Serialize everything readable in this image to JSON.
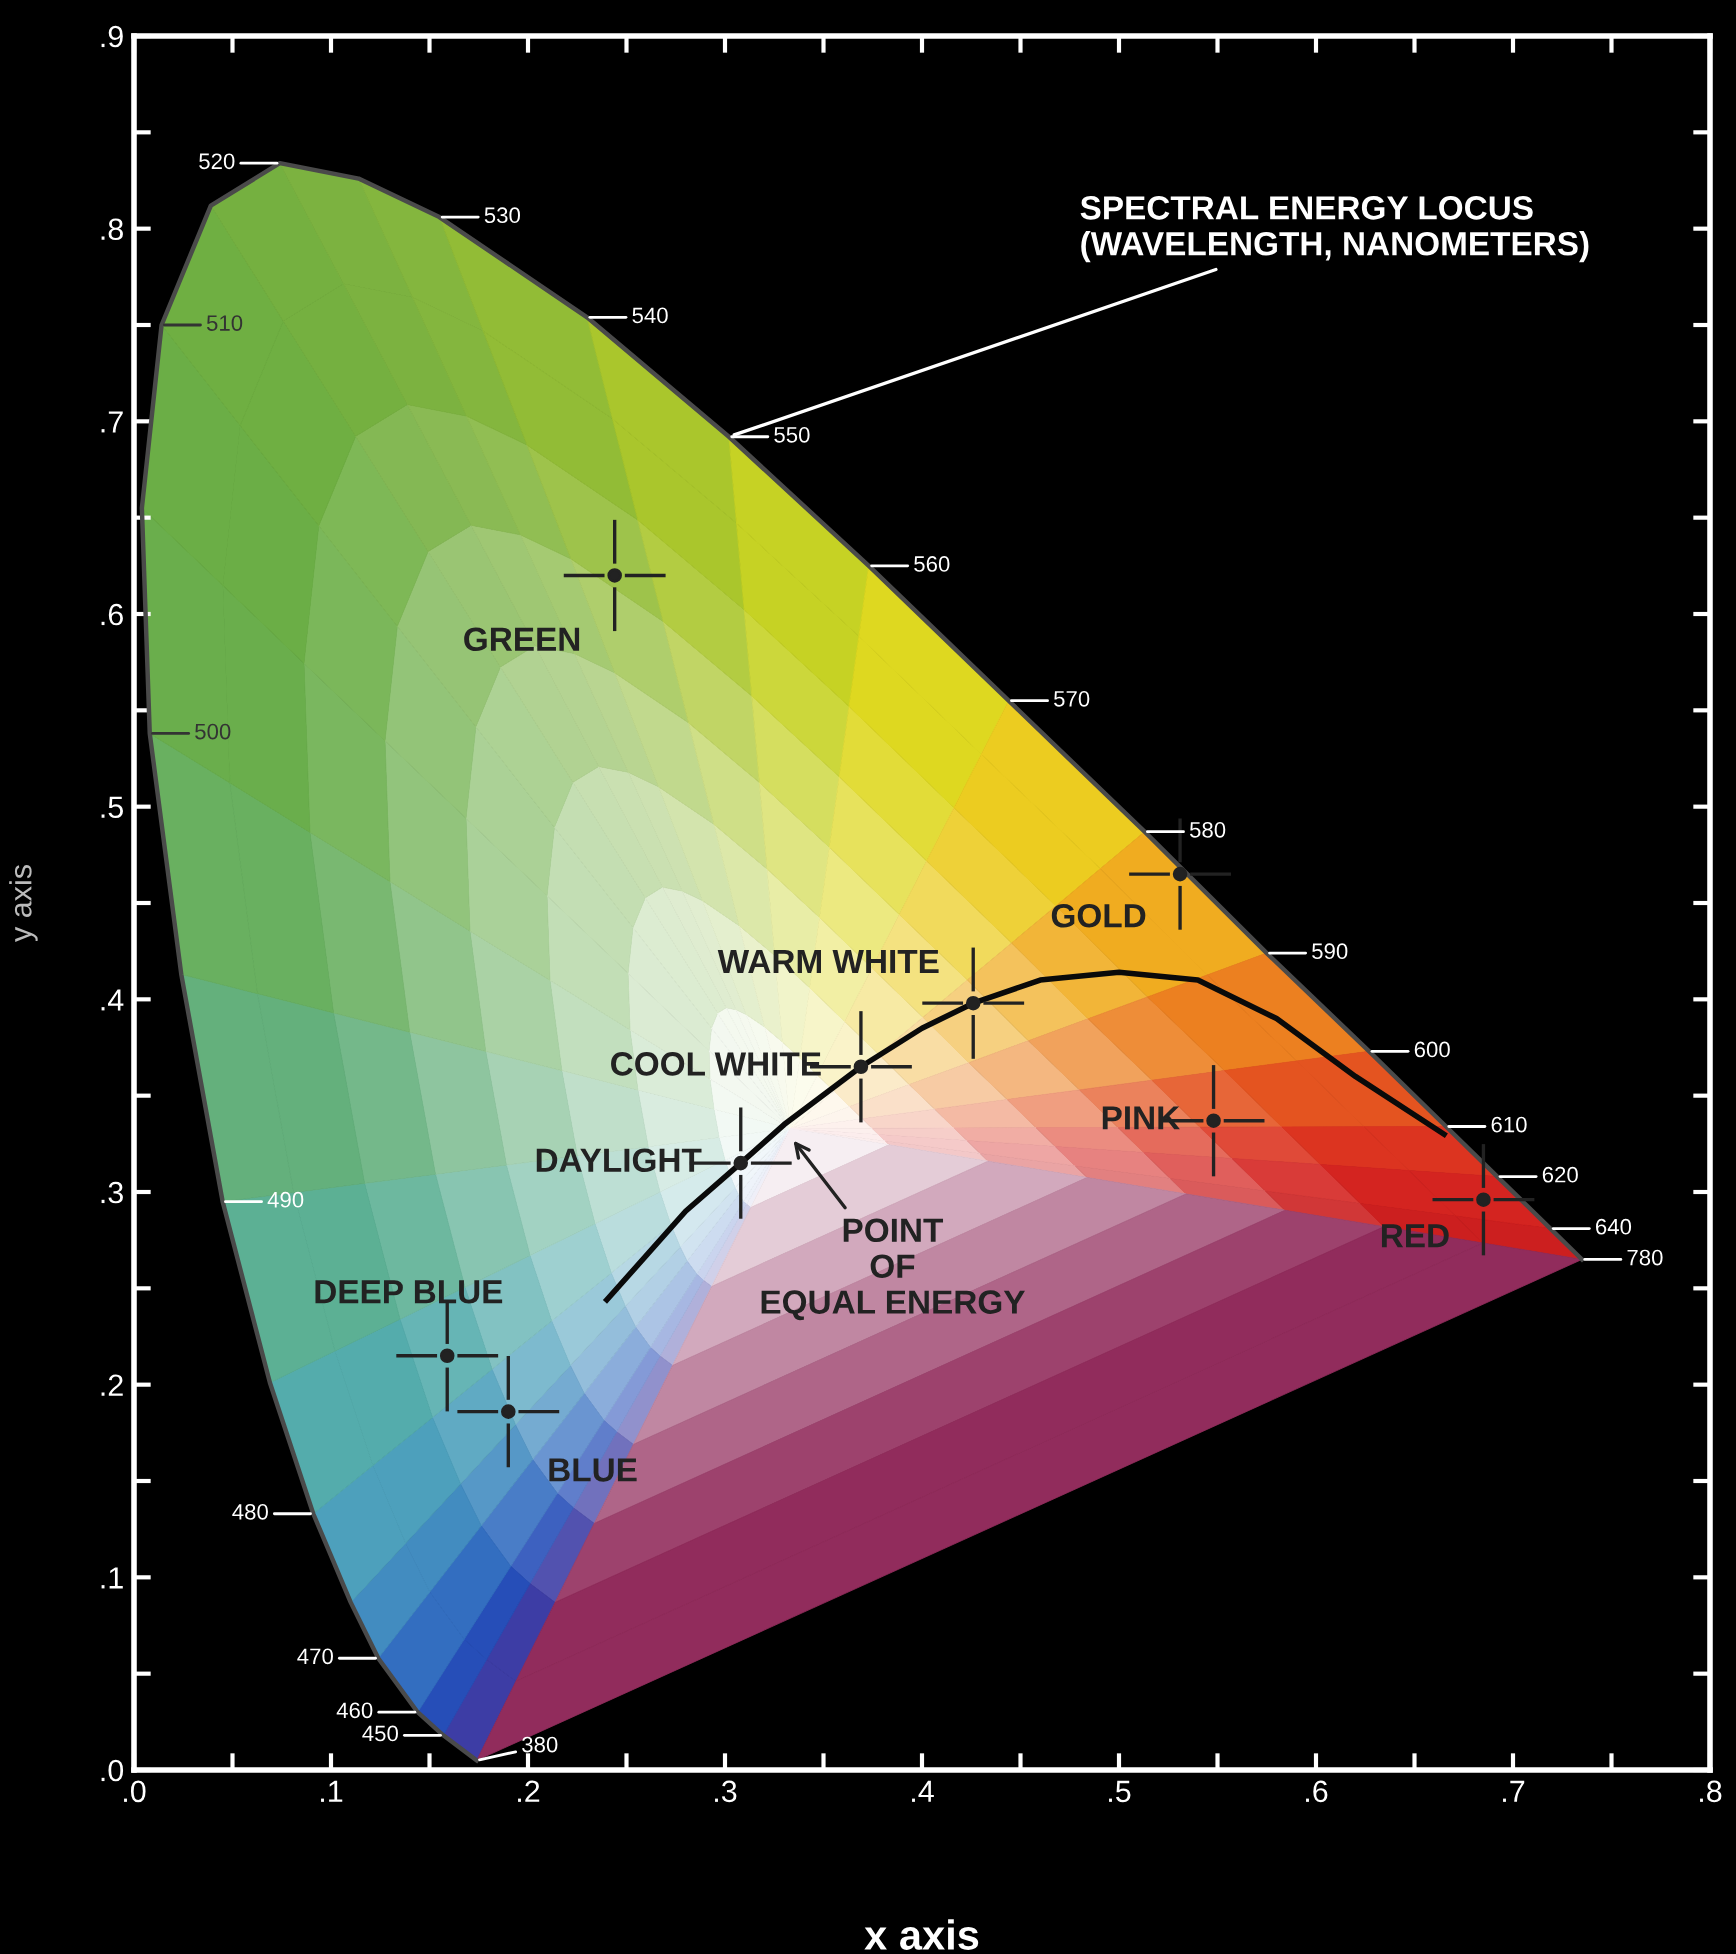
{
  "chart_data": {
    "type": "scatter",
    "xlabel": "x axis",
    "ylabel": "y axis",
    "xlim": [
      0,
      0.8
    ],
    "ylim": [
      0,
      0.9
    ],
    "xticks": [
      {
        "value": 0,
        "label": ".0"
      },
      {
        "value": 0.05,
        "label": null
      },
      {
        "value": 0.1,
        "label": ".1"
      },
      {
        "value": 0.15,
        "label": null
      },
      {
        "value": 0.2,
        "label": ".2"
      },
      {
        "value": 0.25,
        "label": null
      },
      {
        "value": 0.3,
        "label": ".3"
      },
      {
        "value": 0.35,
        "label": null
      },
      {
        "value": 0.4,
        "label": ".4"
      },
      {
        "value": 0.45,
        "label": null
      },
      {
        "value": 0.5,
        "label": ".5"
      },
      {
        "value": 0.55,
        "label": null
      },
      {
        "value": 0.6,
        "label": ".6"
      },
      {
        "value": 0.65,
        "label": null
      },
      {
        "value": 0.7,
        "label": ".7"
      },
      {
        "value": 0.75,
        "label": null
      },
      {
        "value": 0.8,
        "label": ".8"
      }
    ],
    "yticks": [
      {
        "value": 0,
        "label": ".0"
      },
      {
        "value": 0.05,
        "label": null
      },
      {
        "value": 0.1,
        "label": ".1"
      },
      {
        "value": 0.15,
        "label": null
      },
      {
        "value": 0.2,
        "label": ".2"
      },
      {
        "value": 0.25,
        "label": null
      },
      {
        "value": 0.3,
        "label": ".3"
      },
      {
        "value": 0.35,
        "label": null
      },
      {
        "value": 0.4,
        "label": ".4"
      },
      {
        "value": 0.45,
        "label": null
      },
      {
        "value": 0.5,
        "label": ".5"
      },
      {
        "value": 0.55,
        "label": null
      },
      {
        "value": 0.6,
        "label": ".6"
      },
      {
        "value": 0.65,
        "label": null
      },
      {
        "value": 0.7,
        "label": ".7"
      },
      {
        "value": 0.75,
        "label": null
      },
      {
        "value": 0.8,
        "label": ".8"
      },
      {
        "value": 0.85,
        "label": null
      },
      {
        "value": 0.9,
        "label": ".9"
      }
    ],
    "grid": false,
    "legend": false,
    "series": [
      {
        "type": "line",
        "color": "#4a4a4a",
        "x": [
          0.174,
          0.157,
          0.144,
          0.124,
          0.11,
          0.091,
          0.069,
          0.045,
          0.024,
          0.008,
          0.004,
          0.014,
          0.039,
          0.074,
          0.114,
          0.155,
          0.23,
          0.302,
          0.373,
          0.444,
          0.513,
          0.575,
          0.627,
          0.666,
          0.692,
          0.719,
          0.735
        ],
        "values": [
          0.005,
          0.018,
          0.03,
          0.058,
          0.087,
          0.133,
          0.201,
          0.295,
          0.413,
          0.538,
          0.655,
          0.75,
          0.812,
          0.834,
          0.826,
          0.806,
          0.754,
          0.692,
          0.625,
          0.555,
          0.487,
          0.424,
          0.373,
          0.334,
          0.308,
          0.281,
          0.265
        ],
        "colors": [
          "#5a3a9a",
          "#2040b0",
          "#2c5cc0",
          "#3a80c0",
          "#4a98c0",
          "#50a8b8",
          "#58b0a0",
          "#60b088",
          "#68b070",
          "#6aaf50",
          "#6aae48",
          "#6cae44",
          "#72b040",
          "#78b040",
          "#80b440",
          "#88b83c",
          "#9cc030",
          "#b8cc28",
          "#d4d820",
          "#e8d820",
          "#f0c020",
          "#f09820",
          "#e86820",
          "#e04020",
          "#d82820",
          "#d02020",
          "#c81e1e"
        ]
      },
      {
        "type": "line",
        "color": "#0a0a0a",
        "x": [
          0.24,
          0.28,
          0.308,
          0.33,
          0.369,
          0.4,
          0.426,
          0.46,
          0.5,
          0.54,
          0.58,
          0.62,
          0.665
        ],
        "values": [
          0.244,
          0.29,
          0.315,
          0.335,
          0.365,
          0.385,
          0.398,
          0.41,
          0.414,
          0.41,
          0.39,
          0.36,
          0.33
        ]
      },
      {
        "color": "#222222",
        "marker": "circle",
        "x": [
          0.244,
          0.531,
          0.426,
          0.369,
          0.308,
          0.548,
          0.685,
          0.159,
          0.19
        ],
        "values": [
          0.62,
          0.465,
          0.398,
          0.365,
          0.315,
          0.337,
          0.296,
          0.215,
          0.186
        ],
        "value_labels": [
          "GREEN",
          "GOLD",
          "WARM WHITE",
          "COOL WHITE",
          "DAYLIGHT",
          "PINK",
          "RED",
          "DEEP BLUE",
          "BLUE"
        ]
      }
    ],
    "annotations": [
      {
        "text": "SPECTRAL ENERGY LOCUS\n(WAVELENGTH, NANOMETERS)",
        "x": 0.302,
        "y": 0.692
      },
      {
        "text": "POINT\nOF\nEQUAL ENERGY",
        "x": 0.333,
        "y": 0.329
      },
      {
        "text": "380",
        "x": 0.174,
        "y": 0.005
      },
      {
        "text": "450",
        "x": 0.157,
        "y": 0.018
      },
      {
        "text": "460",
        "x": 0.144,
        "y": 0.03
      },
      {
        "text": "470",
        "x": 0.124,
        "y": 0.058
      },
      {
        "text": "480",
        "x": 0.091,
        "y": 0.133
      },
      {
        "text": "490",
        "x": 0.045,
        "y": 0.295
      },
      {
        "text": "500",
        "x": 0.008,
        "y": 0.538
      },
      {
        "text": "510",
        "x": 0.014,
        "y": 0.75
      },
      {
        "text": "520",
        "x": 0.074,
        "y": 0.834
      },
      {
        "text": "530",
        "x": 0.155,
        "y": 0.806
      },
      {
        "text": "540",
        "x": 0.23,
        "y": 0.754
      },
      {
        "text": "550",
        "x": 0.302,
        "y": 0.692
      },
      {
        "text": "560",
        "x": 0.373,
        "y": 0.625
      },
      {
        "text": "570",
        "x": 0.444,
        "y": 0.555
      },
      {
        "text": "580",
        "x": 0.513,
        "y": 0.487
      },
      {
        "text": "590",
        "x": 0.575,
        "y": 0.424
      },
      {
        "text": "600",
        "x": 0.627,
        "y": 0.373
      },
      {
        "text": "610",
        "x": 0.666,
        "y": 0.334
      },
      {
        "text": "620",
        "x": 0.692,
        "y": 0.308
      },
      {
        "text": "640",
        "x": 0.719,
        "y": 0.281
      },
      {
        "text": "780",
        "x": 0.735,
        "y": 0.265
      }
    ]
  }
}
